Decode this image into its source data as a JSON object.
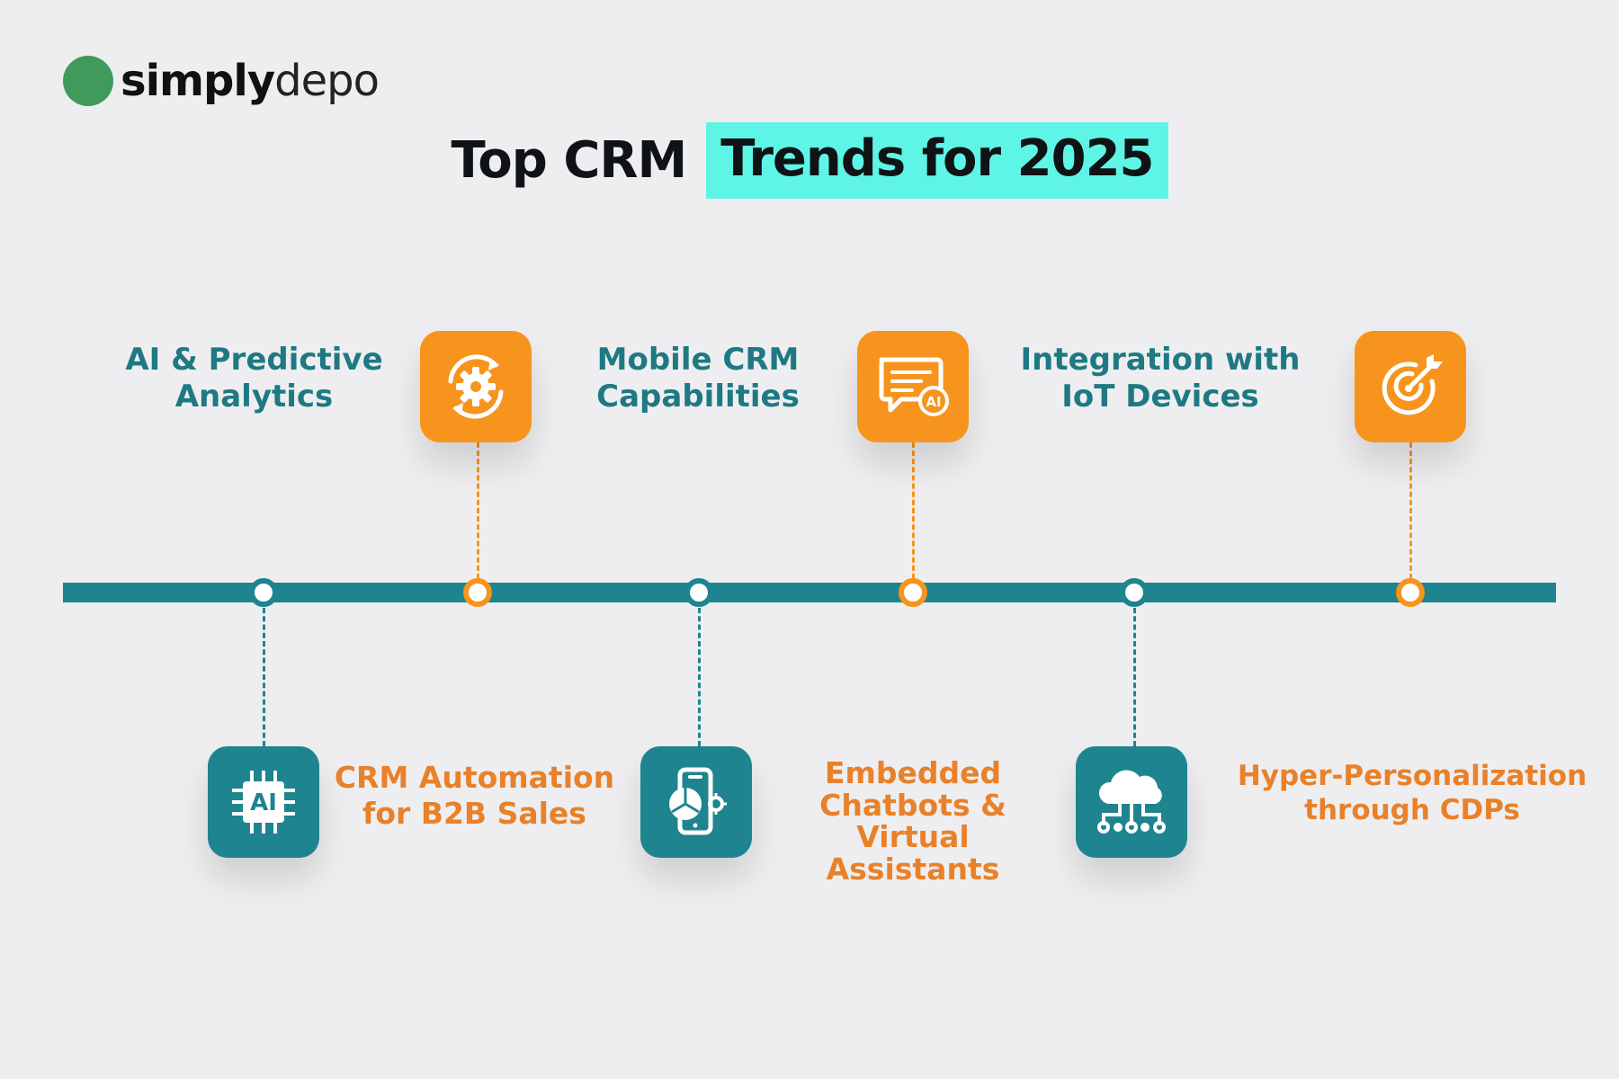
{
  "brand": {
    "name_bold": "simply",
    "name_light": "depo",
    "dot_color": "#3f9a5b"
  },
  "title": {
    "plain": "Top CRM",
    "highlight": "Trends for 2025",
    "highlight_color": "#5ef5e6"
  },
  "colors": {
    "teal": "#1e848f",
    "orange": "#f7941d",
    "background": "#eeeef0"
  },
  "trends_top": [
    {
      "label_line1": "AI & Predictive",
      "label_line2": "Analytics",
      "icon": "gear-refresh-icon"
    },
    {
      "label_line1": "Mobile CRM",
      "label_line2": "Capabilities",
      "icon": "ai-chat-icon"
    },
    {
      "label_line1": "Integration with",
      "label_line2": "IoT Devices",
      "icon": "target-icon"
    }
  ],
  "trends_bottom": [
    {
      "label_line1": "CRM Automation",
      "label_line2": "for B2B Sales",
      "icon": "ai-chip-icon"
    },
    {
      "label_line1": "Embedded",
      "label_line2": "Chatbots & Virtual",
      "label_line3": "Assistants",
      "icon": "mobile-chart-icon"
    },
    {
      "label_line1": "Hyper-Personalization",
      "label_line2": "through CDPs",
      "icon": "cloud-network-icon"
    }
  ]
}
